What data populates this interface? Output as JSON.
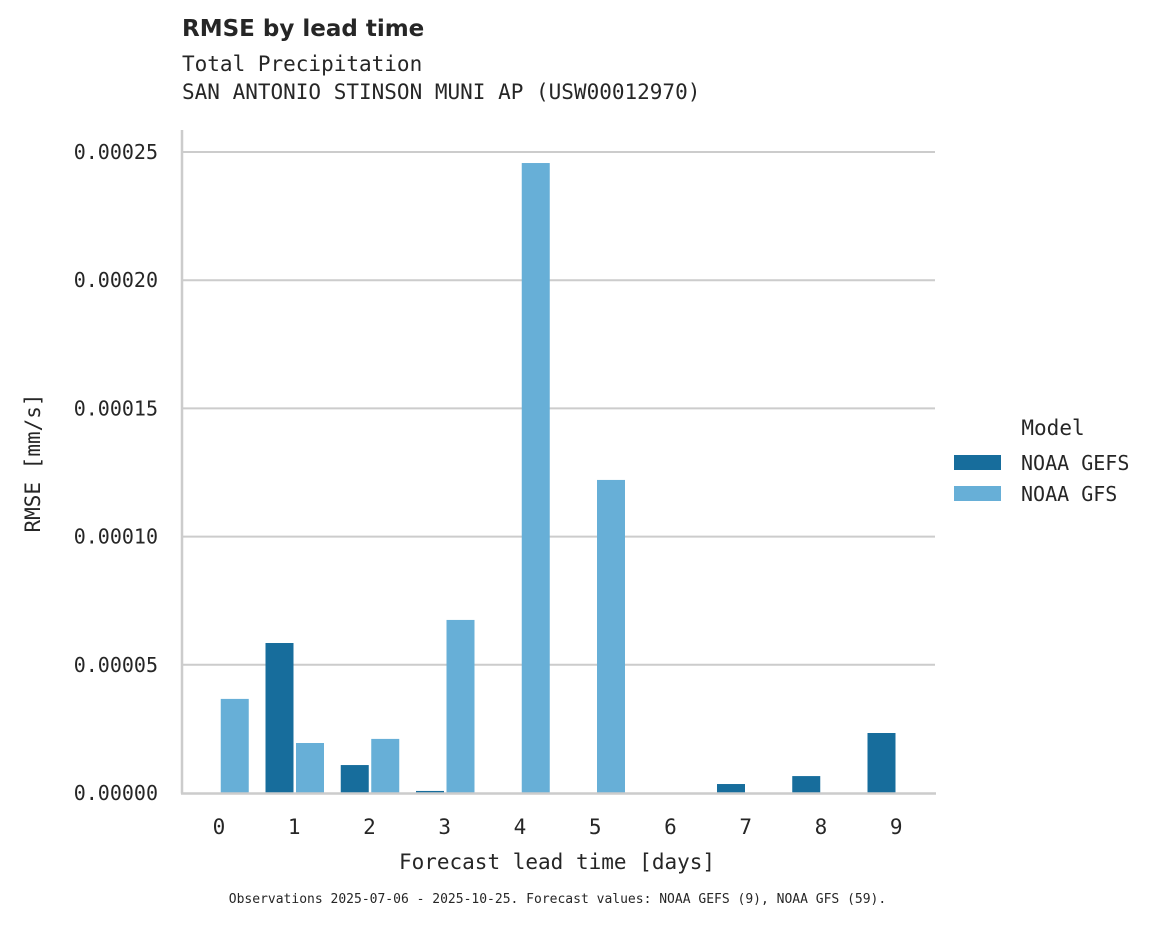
{
  "header": {
    "title": "RMSE by lead time",
    "subtitle_line1": "Total Precipitation",
    "subtitle_line2": "SAN ANTONIO STINSON MUNI AP (USW00012970)"
  },
  "footnote": "Observations 2025-07-06 - 2025-10-25. Forecast values: NOAA GEFS (9), NOAA GFS (59).",
  "legend": {
    "title": "Model",
    "items": [
      {
        "label": "NOAA GEFS",
        "color": "#176d9c"
      },
      {
        "label": "NOAA GFS",
        "color": "#67afd7"
      }
    ]
  },
  "chart_data": {
    "type": "bar",
    "title": "RMSE by lead time",
    "subtitle": "Total Precipitation — SAN ANTONIO STINSON MUNI AP (USW00012970)",
    "xlabel": "Forecast lead time [days]",
    "ylabel": "RMSE [mm/s]",
    "categories": [
      "0",
      "1",
      "2",
      "3",
      "4",
      "5",
      "6",
      "7",
      "8",
      "9"
    ],
    "series": [
      {
        "name": "NOAA GEFS",
        "color": "#176d9c",
        "values": [
          null,
          5.85e-05,
          1.09e-05,
          8e-07,
          null,
          null,
          null,
          3.5e-06,
          6.6e-06,
          2.34e-05
        ]
      },
      {
        "name": "NOAA GFS",
        "color": "#67afd7",
        "values": [
          3.67e-05,
          1.95e-05,
          2.11e-05,
          6.75e-05,
          0.0002457,
          0.0001221,
          null,
          null,
          null,
          null
        ]
      }
    ],
    "yticks": [
      "0.00000",
      "0.00005",
      "0.00010",
      "0.00015",
      "0.00020",
      "0.00025"
    ],
    "ytick_values": [
      0,
      5e-05,
      0.0001,
      0.00015,
      0.0002,
      0.00025
    ],
    "ylim": [
      0,
      0.00026
    ],
    "grid": "horizontal",
    "legend_position": "right",
    "legend_title": "Model"
  }
}
